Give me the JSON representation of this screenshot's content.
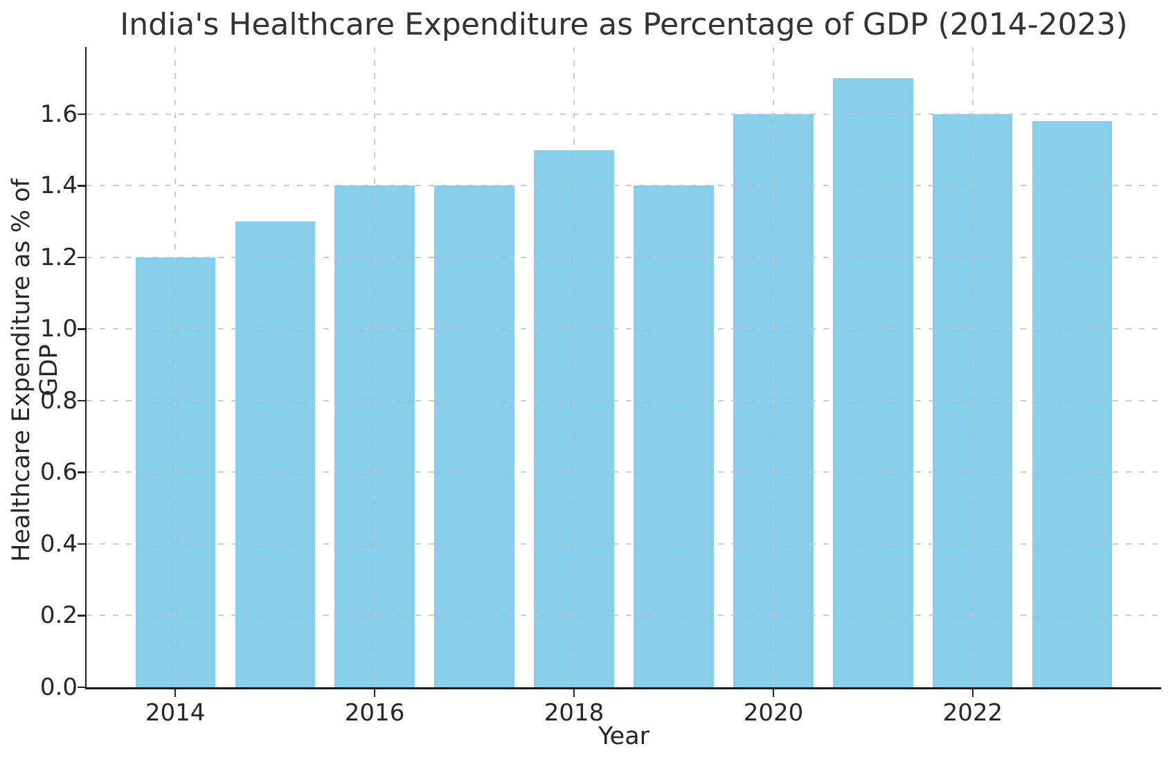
{
  "chart_data": {
    "type": "bar",
    "title": "India's Healthcare Expenditure as Percentage of GDP (2014-2023)",
    "xlabel": "Year",
    "ylabel": "Healthcare Expenditure as % of GDP",
    "categories": [
      2014,
      2015,
      2016,
      2017,
      2018,
      2019,
      2020,
      2021,
      2022,
      2023
    ],
    "values": [
      1.2,
      1.3,
      1.4,
      1.4,
      1.5,
      1.4,
      1.6,
      1.7,
      1.6,
      1.58
    ],
    "bar_color": "#87CEEB",
    "bar_width_years": 0.8,
    "xticks": [
      2014,
      2016,
      2018,
      2020,
      2022
    ],
    "xtick_labels": [
      "2014",
      "2016",
      "2018",
      "2020",
      "2022"
    ],
    "yticks": [
      0.0,
      0.2,
      0.4,
      0.6,
      0.8,
      1.0,
      1.2,
      1.4,
      1.6
    ],
    "ytick_labels": [
      "0.0",
      "0.2",
      "0.4",
      "0.6",
      "0.8",
      "1.0",
      "1.2",
      "1.4",
      "1.6"
    ],
    "xlim": [
      2013.11,
      2023.89
    ],
    "ylim": [
      0,
      1.787
    ],
    "grid": {
      "on": true,
      "style": "dashed",
      "color": "#c4c4c4",
      "above_bars": true
    },
    "legend": "none",
    "spine_color": "#1a1a1a",
    "text_color": "#262626"
  }
}
